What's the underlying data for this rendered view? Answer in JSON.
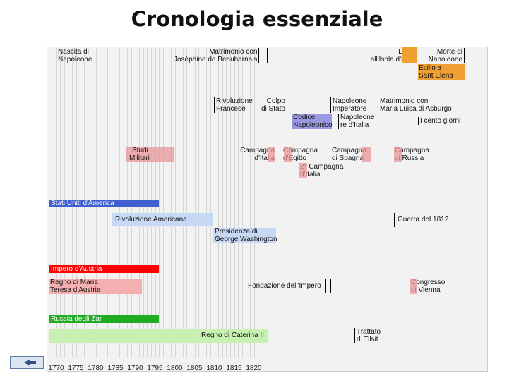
{
  "title": "Cronologia essenziale",
  "axis": {
    "ticks": [
      "1770",
      "1775",
      "1780",
      "1785",
      "1790",
      "1795",
      "1800",
      "1805",
      "1810",
      "1815",
      "1820"
    ]
  },
  "events": {
    "nascita": [
      "Nascita di",
      "Napoleone"
    ],
    "matrimonio_josephine": [
      "Matrimonio con",
      "Josèphine de Beauharnais"
    ],
    "esilio_elba": [
      "Esilio",
      "all'Isola d'Elba"
    ],
    "morte": [
      "Morte di",
      "Napoleone"
    ],
    "esilio_sant_elena": [
      "Esilio a",
      "Sant Elena"
    ],
    "rivoluzione_francese": [
      "Rivoluzione",
      "Francese"
    ],
    "colpo_stato": [
      "Colpo",
      "di Stato"
    ],
    "napoleone_imperatore": [
      "Napoleone",
      "Imperatore"
    ],
    "matrimonio_maria_luisa": [
      "Matrimonio con",
      "Maria Luisa di Asburgo"
    ],
    "codice": [
      "Codice",
      "Napoleonico"
    ],
    "re_italia": [
      "Napoleone",
      "re d'Italia"
    ],
    "cento_giorni": "I cento giorni",
    "studi": [
      "Studi",
      "Militari"
    ],
    "campagna_italia": [
      "Campagna",
      "d'Italia"
    ],
    "campagna_egitto": [
      "Campagna",
      "d'Egitto"
    ],
    "campagna_spagna": [
      "Campagna",
      "di Spagna"
    ],
    "campagna_russia": [
      "Campagna",
      "di Russia"
    ],
    "seconda_campagna_italia": [
      "2° Campagna",
      "d'Italia"
    ],
    "stati_uniti": "Stati Uniti d'America",
    "rivoluzione_americana": "Rivoluzione Americana",
    "presidenza_washington": [
      "Presidenza di",
      "George Washington"
    ],
    "guerra_1812": "Guerra del 1812",
    "impero_austria": "Impero d'Austria",
    "regno_maria_teresa": [
      "Regno di Maria",
      "Teresa d'Austria"
    ],
    "fondazione_impero": "Fondazione dell'Impero",
    "congresso_vienna": [
      "Congresso",
      "di Vienna"
    ],
    "russia_zar": "Russia degli Zar",
    "regno_caterina": "Regno di Caterina II",
    "trattato_tilsit": [
      "Trattato",
      "di Tilsit"
    ]
  },
  "colors": {
    "studi_campaigns": "#e89696",
    "esilio_orange": "#f0a030",
    "codice_blue": "#9a9ae2",
    "usa_bar": "#4060d0",
    "usa_light": "#c6d8f4",
    "austria_bar": "#ff0000",
    "austria_light": "#f4b0b0",
    "russia_bar": "#22aa22",
    "russia_light": "#c8f0b0"
  },
  "nav": {
    "back_icon": "back-arrow-icon"
  }
}
